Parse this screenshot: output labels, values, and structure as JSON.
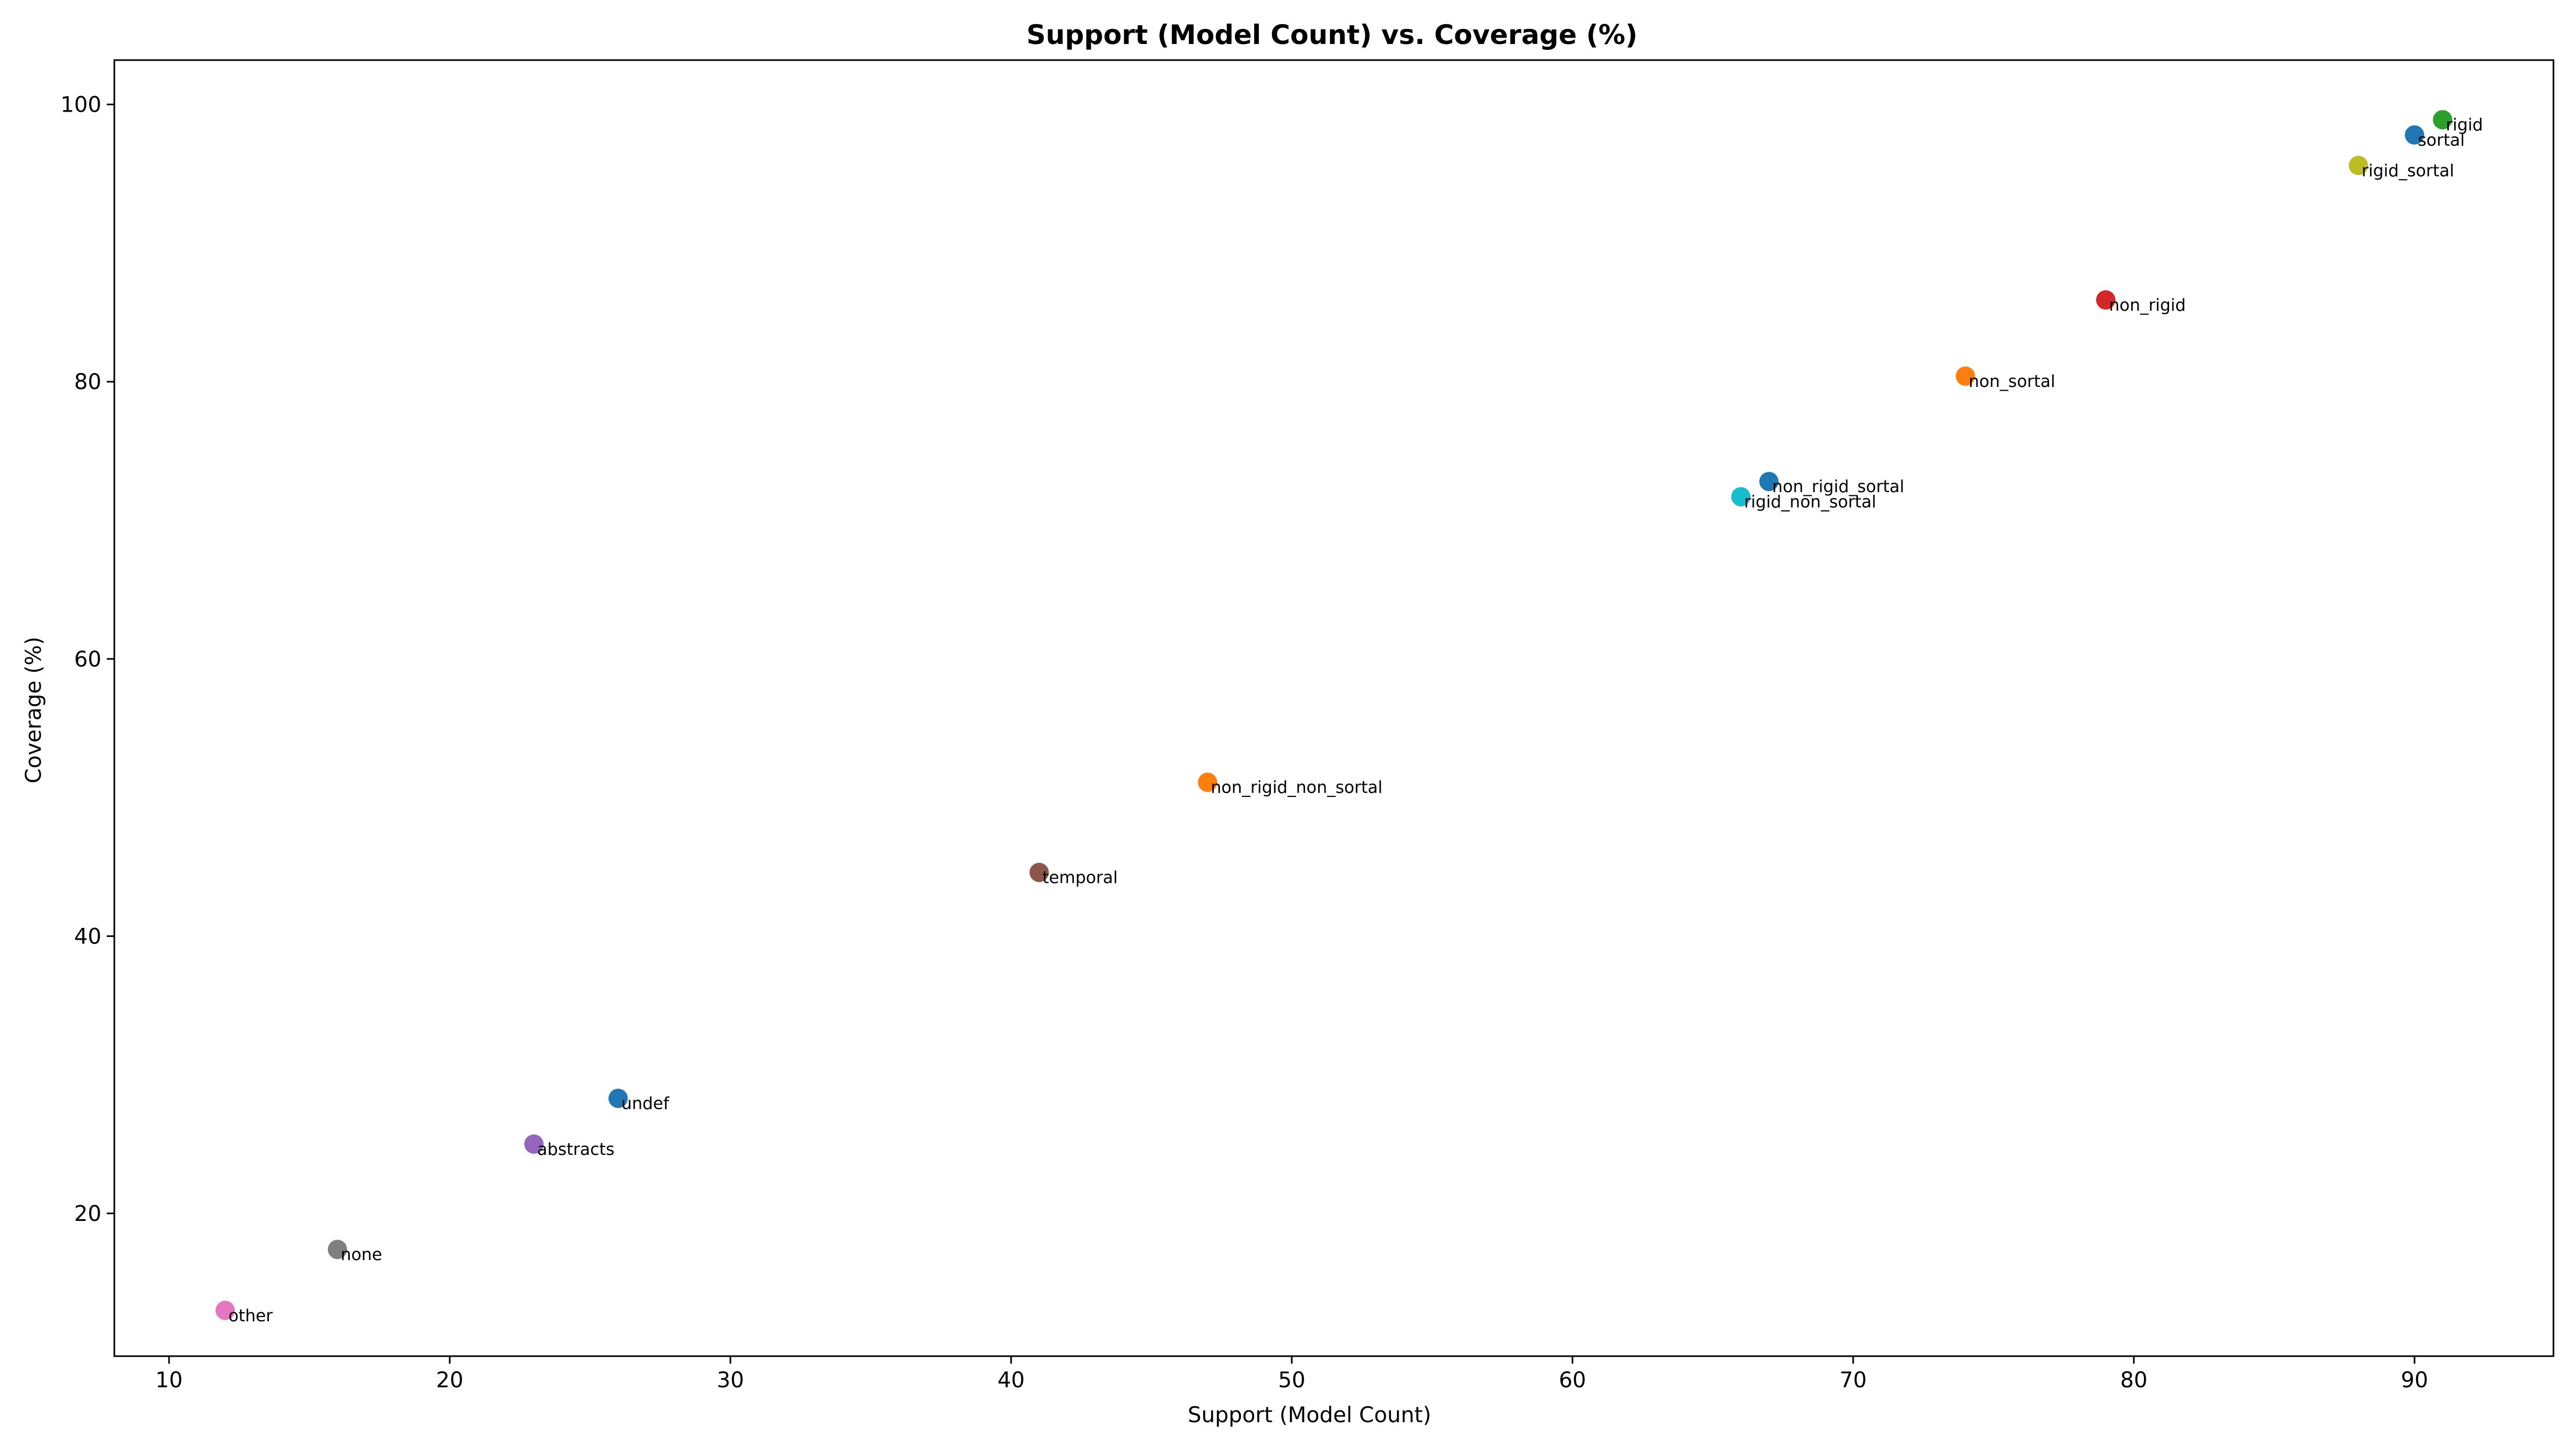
{
  "chart_data": {
    "type": "scatter",
    "title": "Support (Model Count) vs. Coverage (%)",
    "xlabel": "Support (Model Count)",
    "ylabel": "Coverage (%)",
    "xlim": [
      8.05,
      94.95
    ],
    "ylim": [
      9.7,
      103.2
    ],
    "xticks": [
      10,
      20,
      30,
      40,
      50,
      60,
      70,
      80,
      90
    ],
    "yticks": [
      20,
      40,
      60,
      80,
      100
    ],
    "grid": false,
    "legend": "none",
    "points": [
      {
        "label": "rigid",
        "x": 91,
        "y": 98.9,
        "color": "#2ca02c"
      },
      {
        "label": "sortal",
        "x": 90,
        "y": 97.8,
        "color": "#1f77b4"
      },
      {
        "label": "rigid_sortal",
        "x": 88,
        "y": 95.6,
        "color": "#bcbd22"
      },
      {
        "label": "non_rigid",
        "x": 79,
        "y": 85.9,
        "color": "#d62728"
      },
      {
        "label": "non_sortal",
        "x": 74,
        "y": 80.4,
        "color": "#ff7f0e"
      },
      {
        "label": "non_rigid_sortal",
        "x": 67,
        "y": 72.8,
        "color": "#1f77b4"
      },
      {
        "label": "rigid_non_sortal",
        "x": 66,
        "y": 71.7,
        "color": "#17becf"
      },
      {
        "label": "non_rigid_non_sortal",
        "x": 47,
        "y": 51.1,
        "color": "#ff7f0e"
      },
      {
        "label": "temporal",
        "x": 41,
        "y": 44.6,
        "color": "#8c564b"
      },
      {
        "label": "undef",
        "x": 26,
        "y": 28.3,
        "color": "#1f77b4"
      },
      {
        "label": "abstracts",
        "x": 23,
        "y": 25.0,
        "color": "#9467bd"
      },
      {
        "label": "none",
        "x": 16,
        "y": 17.4,
        "color": "#7f7f7f"
      },
      {
        "label": "other",
        "x": 12,
        "y": 13.0,
        "color": "#e377c2"
      }
    ]
  }
}
